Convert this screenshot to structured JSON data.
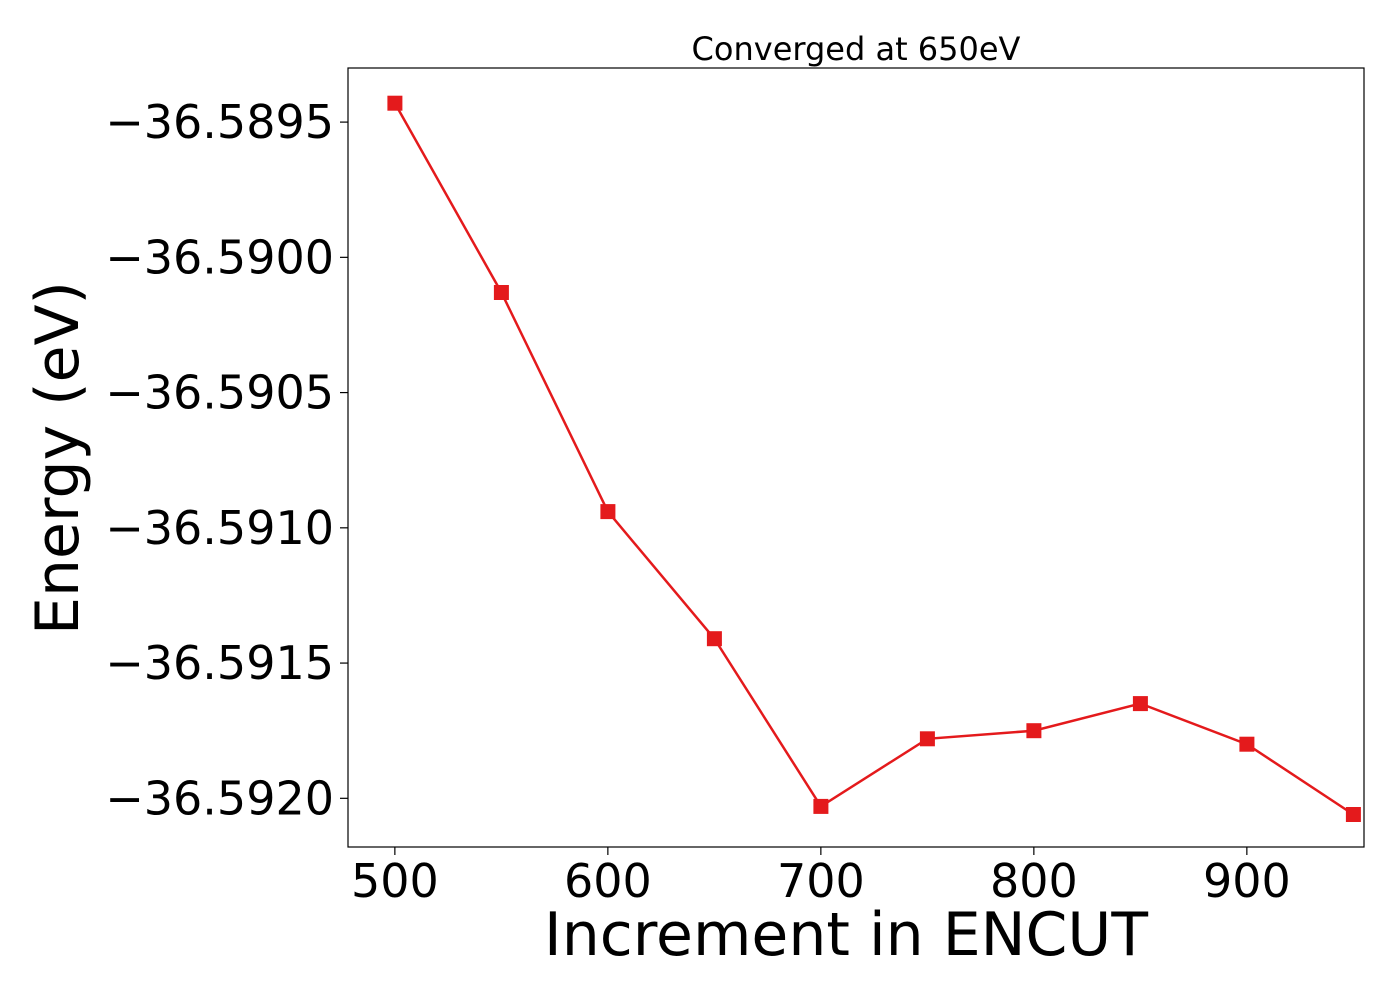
{
  "chart_data": {
    "type": "line",
    "title": "Converged at 650eV",
    "xlabel": "Increment in ENCUT",
    "ylabel": "Energy (eV)",
    "x": [
      500,
      550,
      600,
      650,
      700,
      750,
      800,
      850,
      900,
      950
    ],
    "series": [
      {
        "values": [
          -36.58943,
          -36.59013,
          -36.59094,
          -36.59141,
          -36.59203,
          -36.59178,
          -36.59175,
          -36.59165,
          -36.5918,
          -36.59206
        ],
        "color": "#e41a1c",
        "marker": "square"
      }
    ],
    "xlim": [
      478,
      955
    ],
    "ylim": [
      -36.59218,
      -36.5893
    ],
    "xticks": [
      500,
      600,
      700,
      800,
      900
    ],
    "xtick_labels": [
      "500",
      "600",
      "700",
      "800",
      "900"
    ],
    "yticks": [
      -36.5895,
      -36.59,
      -36.5905,
      -36.591,
      -36.5915,
      -36.592
    ],
    "ytick_labels": [
      "−36.5895",
      "−36.5900",
      "−36.5905",
      "−36.5910",
      "−36.5915",
      "−36.5920"
    ],
    "grid": false,
    "legend": "none"
  }
}
